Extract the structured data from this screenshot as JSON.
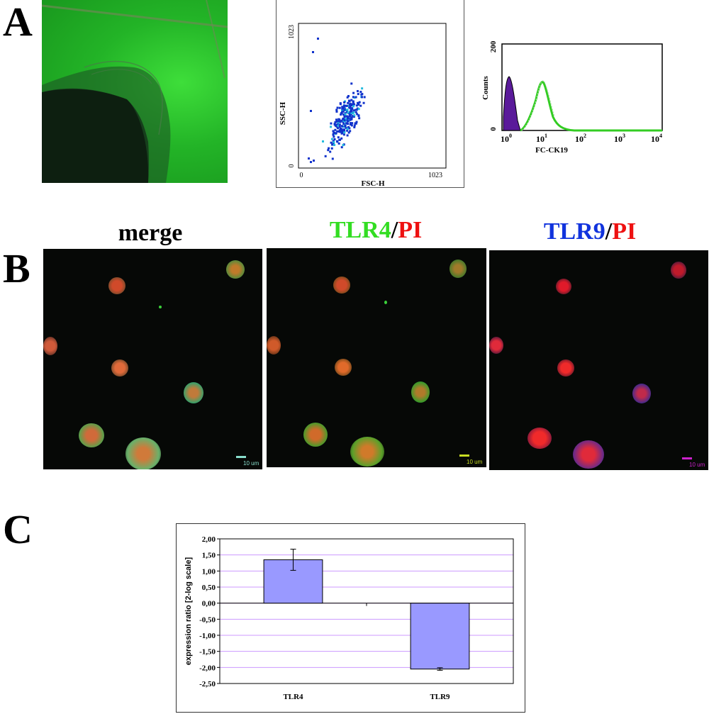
{
  "panels": {
    "a": "A",
    "b": "B",
    "c": "C"
  },
  "scatter": {
    "xlabel": "FSC-H",
    "ylabel": "SSC-H",
    "x_ticks": [
      "0",
      "1023"
    ],
    "y_ticks": [
      "0",
      "1023"
    ]
  },
  "histogram": {
    "xlabel": "FC-CK19",
    "ylabel": "Counts",
    "y_ticks": [
      "0",
      "200"
    ],
    "x_tick_labels": [
      {
        "base": "10",
        "exp": "0"
      },
      {
        "base": "10",
        "exp": "1"
      },
      {
        "base": "10",
        "exp": "2"
      },
      {
        "base": "10",
        "exp": "3"
      },
      {
        "base": "10",
        "exp": "4"
      }
    ]
  },
  "microscopy": {
    "titles": {
      "merge": "merge",
      "tlr4": "TLR4",
      "tlr9": "TLR9",
      "pi": "PI",
      "slash": "/"
    },
    "scale_label": "10 um",
    "colors": {
      "tlr4": "#33dd22",
      "tlr9": "#1133dd",
      "pi": "#ee1111"
    }
  },
  "chart_data": {
    "type": "bar",
    "categories": [
      "TLR4",
      "TLR9"
    ],
    "values": [
      1.35,
      -2.05
    ],
    "errors": [
      0.33,
      0.04
    ],
    "ylabel": "expression ratio [2-log scale]",
    "ylim": [
      -2.5,
      2.0
    ],
    "yticks": [
      "2,00",
      "1,50",
      "1,00",
      "0,50",
      "0,00",
      "-0,50",
      "-1,00",
      "-1,50",
      "-2,00",
      "-2,50"
    ],
    "grid": true,
    "bar_color": "#9999ff",
    "grid_color": "#cc99ff"
  }
}
